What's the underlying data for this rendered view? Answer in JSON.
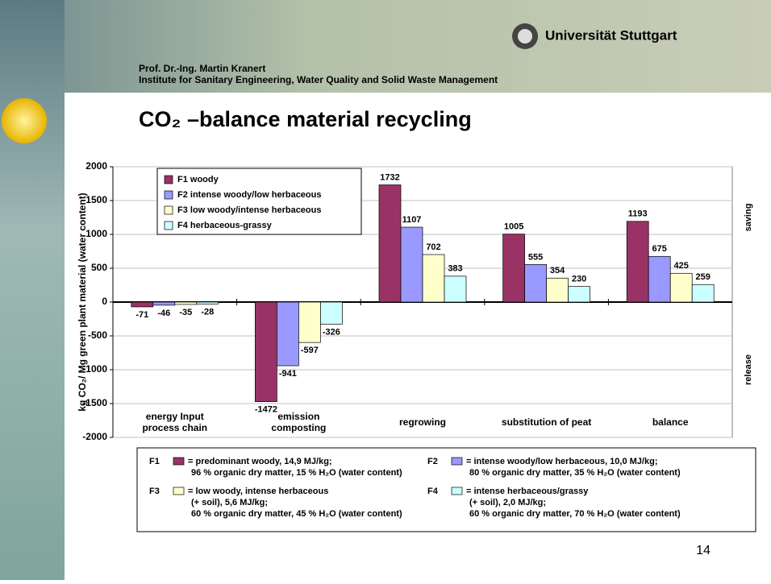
{
  "header": {
    "university": "Universität Stuttgart",
    "author": "Prof. Dr.-Ing. Martin Kranert",
    "institute": "Institute for Sanitary Engineering, Water Quality and Solid Waste Management",
    "title": "CO₂ –balance material recycling"
  },
  "chart_data": {
    "type": "bar",
    "ylabel": "kg CO₂/ Mg  green plant material (water content)",
    "categories": [
      "energy Input\nprocess chain",
      "emission\ncomposting",
      "regrowing",
      "substitution of peat",
      "balance"
    ],
    "series": [
      {
        "name": "F1 woody",
        "color": "#993366",
        "values": [
          -71,
          -1472,
          1732,
          1005,
          1193
        ]
      },
      {
        "name": "F2 intense woody/low herbaceous",
        "color": "#9999ff",
        "values": [
          -46,
          -941,
          1107,
          555,
          675
        ]
      },
      {
        "name": "F3 low woody/intense herbaceous",
        "color": "#ffffcc",
        "values": [
          -35,
          -597,
          702,
          354,
          425
        ]
      },
      {
        "name": "F4 herbaceous-grassy",
        "color": "#ccffff",
        "values": [
          -28,
          -326,
          383,
          230,
          259
        ]
      }
    ],
    "ylim": [
      -2000,
      2000
    ],
    "yticks": [
      -2000,
      -1500,
      -1000,
      -500,
      0,
      500,
      1000,
      1500,
      2000
    ],
    "grid": true,
    "legend": "upper left",
    "side_labels": [
      "saving",
      "release"
    ]
  },
  "notes": [
    {
      "label": "F1",
      "lines": [
        "= predominant woody, 14,9 MJ/kg;",
        "96 % organic dry matter, 15 % H₂O (water content)"
      ]
    },
    {
      "label": "F2",
      "lines": [
        "= intense woody/low herbaceous, 10,0 MJ/kg;",
        "80 % organic dry matter, 35 % H₂O (water content)"
      ]
    },
    {
      "label": "F3",
      "lines": [
        "= low woody, intense herbaceous",
        "(+ soil), 5,6 MJ/kg;",
        "60 % organic dry matter, 45 % H₂O (water content)"
      ]
    },
    {
      "label": "F4",
      "lines": [
        "= intense herbaceous/grassy",
        "(+ soil), 2,0 MJ/kg;",
        "60 % organic dry matter, 70 % H₂O (water content)"
      ]
    }
  ],
  "page_number": "14"
}
